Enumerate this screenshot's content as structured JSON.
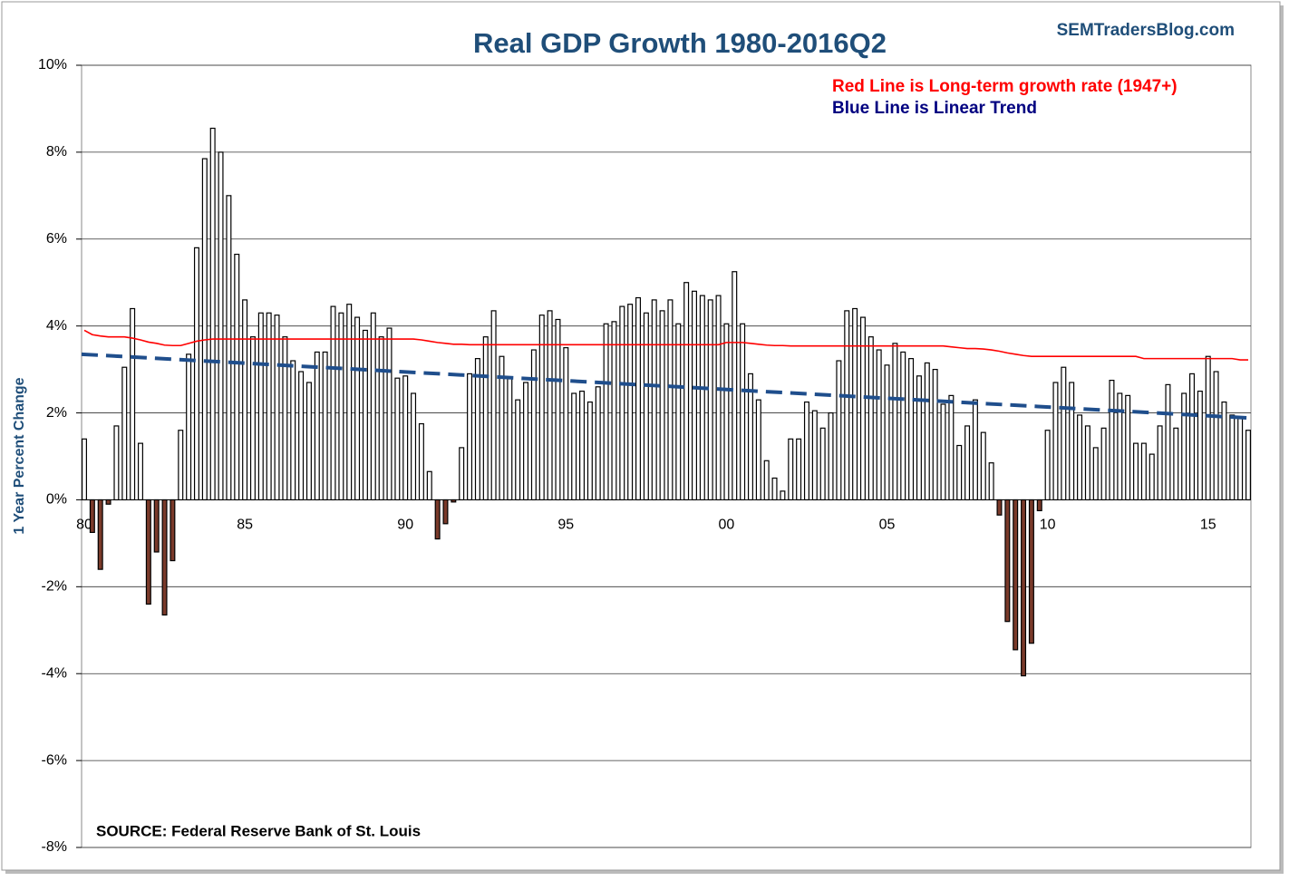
{
  "chart_data": {
    "type": "bar",
    "title": "Real GDP Growth 1980-2016Q2",
    "brand": "SEMTradersBlog.com",
    "ylabel": "1 Year Percent Change",
    "source": "SOURCE:  Federal Reserve Bank of St. Louis",
    "annotations": [
      {
        "text": "Red Line is Long-term growth rate (1947+)",
        "color": "#ff0000"
      },
      {
        "text": "Blue Line is Linear Trend",
        "color": "#000080"
      }
    ],
    "categories": [
      "80",
      null,
      null,
      null,
      null,
      null,
      null,
      null,
      null,
      null,
      null,
      null,
      null,
      null,
      null,
      null,
      null,
      null,
      null,
      null,
      "85",
      null,
      null,
      null,
      null,
      null,
      null,
      null,
      null,
      null,
      null,
      null,
      null,
      null,
      null,
      null,
      null,
      null,
      null,
      null,
      "90",
      null,
      null,
      null,
      null,
      null,
      null,
      null,
      null,
      null,
      null,
      null,
      null,
      null,
      null,
      null,
      null,
      null,
      null,
      null,
      "95",
      null,
      null,
      null,
      null,
      null,
      null,
      null,
      null,
      null,
      null,
      null,
      null,
      null,
      null,
      null,
      null,
      null,
      null,
      null,
      "00",
      null,
      null,
      null,
      null,
      null,
      null,
      null,
      null,
      null,
      null,
      null,
      null,
      null,
      null,
      null,
      null,
      null,
      null,
      null,
      "05",
      null,
      null,
      null,
      null,
      null,
      null,
      null,
      null,
      null,
      null,
      null,
      null,
      null,
      null,
      null,
      null,
      null,
      null,
      null,
      "10",
      null,
      null,
      null,
      null,
      null,
      null,
      null,
      null,
      null,
      null,
      null,
      null,
      null,
      null,
      null,
      null,
      null,
      null,
      null,
      "15",
      null,
      null,
      null,
      null,
      null
    ],
    "values": [
      1.4,
      -0.75,
      -1.6,
      -0.1,
      1.7,
      3.05,
      4.4,
      1.3,
      -2.4,
      -1.2,
      -2.65,
      -1.4,
      1.6,
      3.35,
      5.8,
      7.85,
      8.55,
      8.0,
      7.0,
      5.65,
      4.6,
      3.75,
      4.3,
      4.3,
      4.25,
      3.75,
      3.2,
      2.95,
      2.7,
      3.4,
      3.4,
      4.45,
      4.3,
      4.5,
      4.2,
      3.9,
      4.3,
      3.75,
      3.95,
      2.8,
      2.85,
      2.45,
      1.75,
      0.65,
      -0.9,
      -0.55,
      -0.05,
      1.2,
      2.9,
      3.25,
      3.75,
      4.35,
      3.3,
      2.8,
      2.3,
      2.7,
      3.45,
      4.25,
      4.35,
      4.15,
      3.5,
      2.45,
      2.5,
      2.25,
      2.6,
      4.05,
      4.1,
      4.45,
      4.5,
      4.65,
      4.3,
      4.6,
      4.35,
      4.6,
      4.05,
      5.0,
      4.8,
      4.7,
      4.6,
      4.7,
      4.05,
      5.25,
      4.05,
      2.9,
      2.3,
      0.9,
      0.5,
      0.2,
      1.4,
      1.4,
      2.25,
      2.05,
      1.65,
      2.0,
      3.2,
      4.35,
      4.4,
      4.2,
      3.75,
      3.45,
      3.1,
      3.6,
      3.4,
      3.25,
      2.85,
      3.15,
      3.0,
      2.2,
      2.4,
      1.25,
      1.7,
      2.3,
      1.55,
      0.85,
      -0.35,
      -2.8,
      -3.45,
      -4.05,
      -3.3,
      -0.25,
      1.6,
      2.7,
      3.05,
      2.7,
      1.95,
      1.7,
      1.2,
      1.65,
      2.75,
      2.45,
      2.4,
      1.3,
      1.3,
      1.05,
      1.7,
      2.65,
      1.65,
      2.45,
      2.9,
      2.5,
      3.3,
      2.95,
      2.25,
      1.95,
      1.9,
      1.6
    ],
    "color": "#ffffff",
    "negative_color": "#7a3a2a",
    "long_term": {
      "color": "#ff0000",
      "values": [
        3.9,
        3.8,
        3.77,
        3.75,
        3.75,
        3.75,
        3.72,
        3.68,
        3.63,
        3.6,
        3.56,
        3.55,
        3.55,
        3.6,
        3.65,
        3.68,
        3.7,
        3.7,
        3.7,
        3.7,
        3.7,
        3.7,
        3.7,
        3.7,
        3.7,
        3.7,
        3.7,
        3.7,
        3.7,
        3.7,
        3.7,
        3.7,
        3.7,
        3.7,
        3.7,
        3.7,
        3.7,
        3.7,
        3.7,
        3.7,
        3.7,
        3.7,
        3.68,
        3.65,
        3.62,
        3.6,
        3.58,
        3.58,
        3.57,
        3.57,
        3.57,
        3.57,
        3.57,
        3.57,
        3.57,
        3.57,
        3.57,
        3.57,
        3.57,
        3.57,
        3.57,
        3.57,
        3.57,
        3.57,
        3.57,
        3.57,
        3.57,
        3.57,
        3.57,
        3.57,
        3.57,
        3.57,
        3.57,
        3.57,
        3.57,
        3.57,
        3.57,
        3.57,
        3.57,
        3.57,
        3.62,
        3.62,
        3.62,
        3.6,
        3.58,
        3.56,
        3.55,
        3.55,
        3.54,
        3.54,
        3.54,
        3.54,
        3.54,
        3.54,
        3.54,
        3.54,
        3.54,
        3.54,
        3.54,
        3.54,
        3.54,
        3.54,
        3.54,
        3.54,
        3.54,
        3.54,
        3.54,
        3.54,
        3.52,
        3.5,
        3.48,
        3.48,
        3.47,
        3.45,
        3.42,
        3.38,
        3.35,
        3.32,
        3.3,
        3.3,
        3.3,
        3.3,
        3.3,
        3.3,
        3.3,
        3.3,
        3.3,
        3.3,
        3.3,
        3.3,
        3.3,
        3.3,
        3.25,
        3.25,
        3.25,
        3.25,
        3.25,
        3.25,
        3.25,
        3.25,
        3.25,
        3.25,
        3.25,
        3.25,
        3.22,
        3.22
      ]
    },
    "trend": {
      "color": "#1f4e8c",
      "values": [
        3.35,
        1.88
      ]
    },
    "ylim": [
      -8,
      10
    ],
    "yticks": [
      {
        "value": -8,
        "label": "-8%"
      },
      {
        "value": -6,
        "label": "-6%"
      },
      {
        "value": -4,
        "label": "-4%"
      },
      {
        "value": -2,
        "label": "-2%"
      },
      {
        "value": 0,
        "label": "0%"
      },
      {
        "value": 2,
        "label": "2%"
      },
      {
        "value": 4,
        "label": "4%"
      },
      {
        "value": 6,
        "label": "6%"
      },
      {
        "value": 8,
        "label": "8%"
      },
      {
        "value": 10,
        "label": "10%"
      }
    ],
    "grid": true
  }
}
